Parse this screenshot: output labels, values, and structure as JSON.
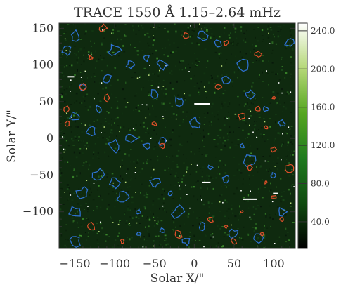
{
  "chart_data": {
    "type": "heatmap",
    "title": "TRACE 1550 Å 1.15–2.64 mHz",
    "xlabel": "Solar X/\"",
    "ylabel": "Solar Y/\"",
    "xlim": [
      -170,
      127
    ],
    "ylim": [
      -150,
      157
    ],
    "x_ticks": [
      -150,
      -100,
      -50,
      0,
      50,
      100
    ],
    "x_tick_labels": [
      "−150",
      "−100",
      "−50",
      "0",
      "50",
      "100"
    ],
    "y_ticks": [
      -100,
      -50,
      0,
      50,
      100,
      150
    ],
    "y_tick_labels": [
      "−100",
      "−50",
      "0",
      "50",
      "100",
      "150"
    ],
    "colorbar": {
      "range": [
        12,
        248
      ],
      "ticks": [
        40,
        80,
        120,
        160,
        200,
        240
      ],
      "tick_labels": [
        "40.0",
        "80.0",
        "120.0",
        "160.0",
        "200.0",
        "240.0"
      ],
      "colors": [
        "#000000",
        "#0f4a0f",
        "#1f7a1f",
        "#55a520",
        "#b5d878",
        "#ffffff"
      ]
    },
    "contour_colors": {
      "blue": "#2f73d6",
      "red": "#e0502a"
    },
    "background_color": "#0f2a0f",
    "bright_features": [
      {
        "x": 10,
        "y": 47,
        "length": 20
      },
      {
        "x": 70,
        "y": -83,
        "length": 17
      },
      {
        "x": 15,
        "y": -60,
        "length": 11
      },
      {
        "x": -155,
        "y": 84,
        "length": 8
      },
      {
        "x": 102,
        "y": -75,
        "length": 6
      }
    ]
  }
}
